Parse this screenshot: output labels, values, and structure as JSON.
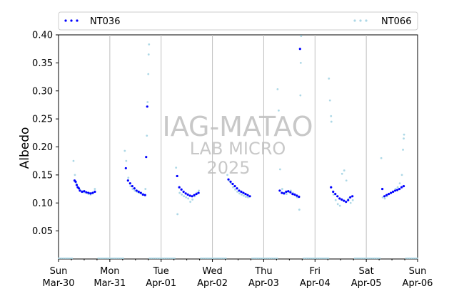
{
  "chart_data": {
    "type": "scatter",
    "ylabel": "Albedo",
    "xlabel": "",
    "ylim": [
      0,
      0.4
    ],
    "xlim": [
      "2025-03-30",
      "2025-04-06"
    ],
    "y_ticks": [
      0.05,
      0.1,
      0.15,
      0.2,
      0.25,
      0.3,
      0.35,
      0.4
    ],
    "x_ticks": [
      {
        "date": "2025-03-30",
        "day": "Sun",
        "label": "Mar-30"
      },
      {
        "date": "2025-03-31",
        "day": "Mon",
        "label": "Mar-31"
      },
      {
        "date": "2025-04-01",
        "day": "Tue",
        "label": "Apr-01"
      },
      {
        "date": "2025-04-02",
        "day": "Wed",
        "label": "Apr-02"
      },
      {
        "date": "2025-04-03",
        "day": "Thu",
        "label": "Apr-03"
      },
      {
        "date": "2025-04-04",
        "day": "Fri",
        "label": "Apr-04"
      },
      {
        "date": "2025-04-05",
        "day": "Sat",
        "label": "Apr-05"
      },
      {
        "date": "2025-04-06",
        "day": "Sun",
        "label": "Apr-06"
      }
    ],
    "grid": "vertical lines at day boundaries",
    "legend": "top, spanning width",
    "watermark": [
      "IAG-MATAO",
      "LAB MICRO",
      "2025"
    ],
    "series": [
      {
        "name": "NT036",
        "color": "#0000ff",
        "marker": "dot",
        "x": [
          "2025-03-30T07:30",
          "2025-03-30T08:00",
          "2025-03-30T08:30",
          "2025-03-30T09:00",
          "2025-03-30T09:30",
          "2025-03-30T10:00",
          "2025-03-30T11:00",
          "2025-03-30T12:00",
          "2025-03-30T13:00",
          "2025-03-30T14:00",
          "2025-03-30T15:00",
          "2025-03-30T16:00",
          "2025-03-30T17:00",
          "2025-03-31T07:30",
          "2025-03-31T08:30",
          "2025-03-31T09:30",
          "2025-03-31T10:30",
          "2025-03-31T11:30",
          "2025-03-31T12:30",
          "2025-03-31T13:30",
          "2025-03-31T14:30",
          "2025-03-31T15:30",
          "2025-03-31T16:30",
          "2025-03-31T17:00",
          "2025-03-31T17:30",
          "2025-04-01T07:30",
          "2025-04-01T08:30",
          "2025-04-01T09:30",
          "2025-04-01T10:30",
          "2025-04-01T11:30",
          "2025-04-01T12:30",
          "2025-04-01T13:30",
          "2025-04-01T14:30",
          "2025-04-01T15:30",
          "2025-04-01T16:30",
          "2025-04-01T17:30",
          "2025-04-02T07:30",
          "2025-04-02T08:30",
          "2025-04-02T09:30",
          "2025-04-02T10:30",
          "2025-04-02T11:30",
          "2025-04-02T12:30",
          "2025-04-02T13:30",
          "2025-04-02T14:30",
          "2025-04-02T15:30",
          "2025-04-02T16:30",
          "2025-04-02T17:30",
          "2025-04-03T07:30",
          "2025-04-03T08:30",
          "2025-04-03T09:30",
          "2025-04-03T10:30",
          "2025-04-03T11:30",
          "2025-04-03T12:30",
          "2025-04-03T13:30",
          "2025-04-03T14:30",
          "2025-04-03T15:30",
          "2025-04-03T16:30",
          "2025-04-03T17:00",
          "2025-04-04T07:30",
          "2025-04-04T08:30",
          "2025-04-04T09:30",
          "2025-04-04T10:30",
          "2025-04-04T11:30",
          "2025-04-04T12:30",
          "2025-04-04T13:30",
          "2025-04-04T14:30",
          "2025-04-04T15:30",
          "2025-04-04T16:30",
          "2025-04-04T17:30",
          "2025-04-05T07:30",
          "2025-04-05T08:30",
          "2025-04-05T09:30",
          "2025-04-05T10:30",
          "2025-04-05T11:30",
          "2025-04-05T12:30",
          "2025-04-05T13:30",
          "2025-04-05T14:30",
          "2025-04-05T15:30",
          "2025-04-05T16:30",
          "2025-04-05T17:30"
        ],
        "y": [
          0.14,
          0.138,
          0.132,
          0.128,
          0.126,
          0.122,
          0.12,
          0.121,
          0.119,
          0.118,
          0.117,
          0.118,
          0.12,
          0.162,
          0.14,
          0.135,
          0.13,
          0.126,
          0.122,
          0.12,
          0.118,
          0.115,
          0.114,
          0.182,
          0.272,
          0.148,
          0.128,
          0.124,
          0.12,
          0.117,
          0.115,
          0.113,
          0.112,
          0.114,
          0.116,
          0.118,
          0.142,
          0.138,
          0.134,
          0.13,
          0.126,
          0.122,
          0.12,
          0.118,
          0.116,
          0.114,
          0.112,
          0.122,
          0.118,
          0.117,
          0.12,
          0.121,
          0.119,
          0.116,
          0.115,
          0.113,
          0.111,
          0.375,
          0.128,
          0.12,
          0.116,
          0.112,
          0.108,
          0.106,
          0.104,
          0.102,
          0.105,
          0.11,
          0.112,
          0.125,
          0.112,
          0.114,
          0.116,
          0.118,
          0.12,
          0.122,
          0.123,
          0.125,
          0.128,
          0.13
        ]
      },
      {
        "name": "NT066",
        "color": "#add8e6",
        "marker": "dot",
        "x": [
          "2025-03-30T07:00",
          "2025-03-30T07:40",
          "2025-03-30T08:20",
          "2025-03-30T09:10",
          "2025-03-30T10:00",
          "2025-03-30T11:00",
          "2025-03-30T12:00",
          "2025-03-30T13:00",
          "2025-03-30T14:00",
          "2025-03-30T15:00",
          "2025-03-30T16:00",
          "2025-03-30T17:00",
          "2025-03-31T07:00",
          "2025-03-31T07:40",
          "2025-03-31T08:40",
          "2025-03-31T09:40",
          "2025-03-31T10:40",
          "2025-03-31T11:40",
          "2025-03-31T12:40",
          "2025-03-31T13:40",
          "2025-03-31T14:40",
          "2025-03-31T15:40",
          "2025-03-31T16:40",
          "2025-03-31T17:20",
          "2025-03-31T17:40",
          "2025-03-31T18:00",
          "2025-03-31T18:10",
          "2025-03-31T18:20",
          "2025-04-01T07:00",
          "2025-04-01T07:40",
          "2025-04-01T08:40",
          "2025-04-01T09:40",
          "2025-04-01T10:40",
          "2025-04-01T11:40",
          "2025-04-01T12:40",
          "2025-04-01T13:40",
          "2025-04-01T14:40",
          "2025-04-01T15:40",
          "2025-04-01T16:40",
          "2025-04-01T17:40",
          "2025-04-02T07:00",
          "2025-04-02T07:40",
          "2025-04-02T08:40",
          "2025-04-02T09:40",
          "2025-04-02T10:40",
          "2025-04-02T11:40",
          "2025-04-02T12:40",
          "2025-04-02T13:40",
          "2025-04-02T14:40",
          "2025-04-02T15:40",
          "2025-04-02T16:40",
          "2025-04-02T17:40",
          "2025-04-03T06:30",
          "2025-04-03T07:00",
          "2025-04-03T07:40",
          "2025-04-03T08:40",
          "2025-04-03T09:40",
          "2025-04-03T10:40",
          "2025-04-03T11:40",
          "2025-04-03T12:40",
          "2025-04-03T13:40",
          "2025-04-03T14:40",
          "2025-04-03T15:40",
          "2025-04-03T16:40",
          "2025-04-03T17:10",
          "2025-04-03T17:20",
          "2025-04-03T17:30",
          "2025-04-04T06:30",
          "2025-04-04T07:00",
          "2025-04-04T07:30",
          "2025-04-04T07:40",
          "2025-04-04T08:40",
          "2025-04-04T09:40",
          "2025-04-04T10:40",
          "2025-04-04T11:40",
          "2025-04-04T12:40",
          "2025-04-04T13:40",
          "2025-04-04T14:40",
          "2025-04-04T15:40",
          "2025-04-04T16:40",
          "2025-04-04T17:40",
          "2025-04-05T07:00",
          "2025-04-05T07:40",
          "2025-04-05T08:40",
          "2025-04-05T09:40",
          "2025-04-05T10:40",
          "2025-04-05T11:40",
          "2025-04-05T12:40",
          "2025-04-05T13:40",
          "2025-04-05T14:40",
          "2025-04-05T15:40",
          "2025-04-05T16:40",
          "2025-04-05T17:10",
          "2025-04-05T17:30",
          "2025-04-05T17:40"
        ],
        "y": [
          0.175,
          0.15,
          0.135,
          0.128,
          0.124,
          0.121,
          0.119,
          0.118,
          0.116,
          0.115,
          0.117,
          0.125,
          0.193,
          0.175,
          0.145,
          0.13,
          0.125,
          0.122,
          0.12,
          0.118,
          0.117,
          0.116,
          0.125,
          0.22,
          0.28,
          0.33,
          0.365,
          0.383,
          0.163,
          0.08,
          0.118,
          0.115,
          0.112,
          0.11,
          0.108,
          0.102,
          0.106,
          0.112,
          0.118,
          0.122,
          0.15,
          0.14,
          0.135,
          0.128,
          0.124,
          0.12,
          0.117,
          0.115,
          0.113,
          0.111,
          0.11,
          0.112,
          0.303,
          0.265,
          0.16,
          0.125,
          0.118,
          0.116,
          0.12,
          0.122,
          0.118,
          0.114,
          0.11,
          0.088,
          0.292,
          0.35,
          0.398,
          0.322,
          0.283,
          0.255,
          0.245,
          0.115,
          0.105,
          0.098,
          0.095,
          0.152,
          0.158,
          0.14,
          0.108,
          0.1,
          0.105,
          0.18,
          0.11,
          0.108,
          0.112,
          0.116,
          0.118,
          0.12,
          0.125,
          0.128,
          0.135,
          0.15,
          0.195,
          0.215,
          0.222
        ]
      }
    ]
  }
}
